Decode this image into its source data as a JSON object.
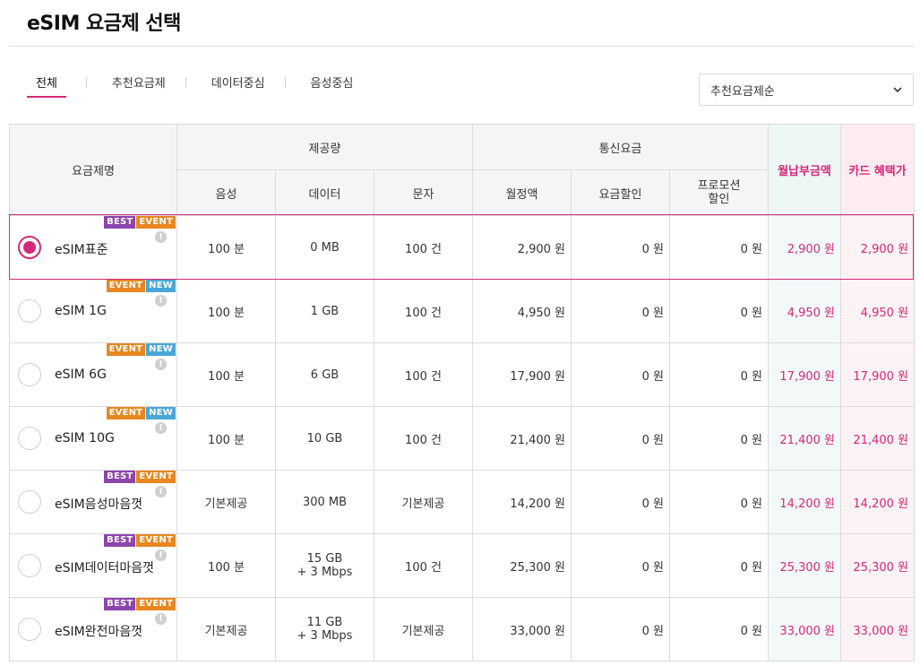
{
  "page": {
    "title": "eSIM 요금제 선택"
  },
  "tabs": [
    {
      "label": "전체",
      "active": true
    },
    {
      "label": "추천요금제",
      "active": false
    },
    {
      "label": "데이터중심",
      "active": false
    },
    {
      "label": "음성중심",
      "active": false
    }
  ],
  "sort": {
    "selected": "추천요금제순",
    "icon": "chevron-down-icon"
  },
  "table": {
    "headers": {
      "plan_name": "요금제명",
      "provision": "제공량",
      "voice": "음성",
      "data": "데이터",
      "sms": "문자",
      "charges": "통신요금",
      "monthly_fee": "월정액",
      "fee_discount": "요금할인",
      "promo_discount_line1": "프로모션",
      "promo_discount_line2": "할인",
      "monthly_payment": "월납부금액",
      "card_benefit": "카드 혜택가"
    },
    "rows": [
      {
        "name": "eSIM표준",
        "selected": true,
        "badges": [
          "BEST",
          "EVENT"
        ],
        "voice": "100 분",
        "data1": "0 MB",
        "data2": "",
        "sms": "100 건",
        "monthly_fee": "2,900 원",
        "fee_discount": "0 원",
        "promo_discount": "0 원",
        "monthly_payment": "2,900 원",
        "card_benefit": "2,900 원"
      },
      {
        "name": "eSIM 1G",
        "selected": false,
        "badges": [
          "EVENT",
          "NEW"
        ],
        "voice": "100 분",
        "data1": "1 GB",
        "data2": "",
        "sms": "100 건",
        "monthly_fee": "4,950 원",
        "fee_discount": "0 원",
        "promo_discount": "0 원",
        "monthly_payment": "4,950 원",
        "card_benefit": "4,950 원"
      },
      {
        "name": "eSIM 6G",
        "selected": false,
        "badges": [
          "EVENT",
          "NEW"
        ],
        "voice": "100 분",
        "data1": "6 GB",
        "data2": "",
        "sms": "100 건",
        "monthly_fee": "17,900 원",
        "fee_discount": "0 원",
        "promo_discount": "0 원",
        "monthly_payment": "17,900 원",
        "card_benefit": "17,900 원"
      },
      {
        "name": "eSIM 10G",
        "selected": false,
        "badges": [
          "EVENT",
          "NEW"
        ],
        "voice": "100 분",
        "data1": "10 GB",
        "data2": "",
        "sms": "100 건",
        "monthly_fee": "21,400 원",
        "fee_discount": "0 원",
        "promo_discount": "0 원",
        "monthly_payment": "21,400 원",
        "card_benefit": "21,400 원"
      },
      {
        "name": "eSIM음성마음껏",
        "selected": false,
        "badges": [
          "BEST",
          "EVENT"
        ],
        "voice": "기본제공",
        "data1": "300 MB",
        "data2": "",
        "sms": "기본제공",
        "monthly_fee": "14,200 원",
        "fee_discount": "0 원",
        "promo_discount": "0 원",
        "monthly_payment": "14,200 원",
        "card_benefit": "14,200 원"
      },
      {
        "name": "eSIM데이터마음껏",
        "selected": false,
        "badges": [
          "BEST",
          "EVENT"
        ],
        "voice": "100 분",
        "data1": "15 GB",
        "data2": "+ 3 Mbps",
        "sms": "100 건",
        "monthly_fee": "25,300 원",
        "fee_discount": "0 원",
        "promo_discount": "0 원",
        "monthly_payment": "25,300 원",
        "card_benefit": "25,300 원"
      },
      {
        "name": "eSIM완전마음껏",
        "selected": false,
        "badges": [
          "BEST",
          "EVENT"
        ],
        "voice": "기본제공",
        "data1": "11 GB",
        "data2": "+ 3 Mbps",
        "sms": "기본제공",
        "monthly_fee": "33,000 원",
        "fee_discount": "0 원",
        "promo_discount": "0 원",
        "monthly_payment": "33,000 원",
        "card_benefit": "33,000 원"
      }
    ]
  },
  "colors": {
    "accent": "#d6287a",
    "best": "#8d44ad",
    "event": "#e88620",
    "new": "#4aa6d6"
  }
}
